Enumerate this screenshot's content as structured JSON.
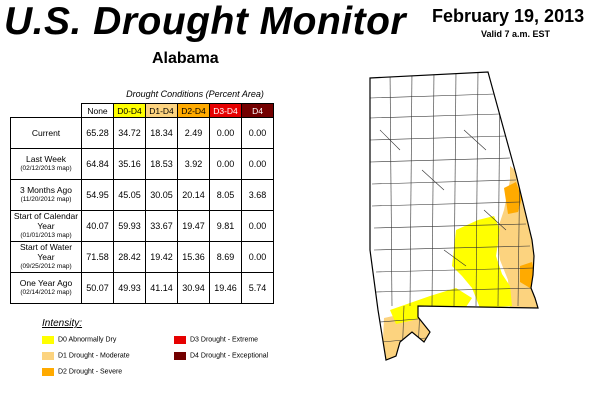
{
  "header": {
    "title": "U.S. Drought Monitor",
    "state": "Alabama",
    "date": "February 19, 2013",
    "valid": "Valid 7 a.m. EST"
  },
  "table": {
    "caption": "Drought Conditions (Percent Area)",
    "columns": [
      "None",
      "D0-D4",
      "D1-D4",
      "D2-D4",
      "D3-D4",
      "D4"
    ],
    "column_colors": [
      "#ffffff",
      "#ffff00",
      "#fcd37f",
      "#ffaa00",
      "#e60000",
      "#730000"
    ],
    "column_text_colors": [
      "#000000",
      "#000000",
      "#000000",
      "#000000",
      "#ffffff",
      "#ffffff"
    ],
    "rows": [
      {
        "label": "Current",
        "sub": "",
        "values": [
          "65.28",
          "34.72",
          "18.34",
          "2.49",
          "0.00",
          "0.00"
        ]
      },
      {
        "label": "Last Week",
        "sub": "(02/12/2013 map)",
        "values": [
          "64.84",
          "35.16",
          "18.53",
          "3.92",
          "0.00",
          "0.00"
        ]
      },
      {
        "label": "3 Months Ago",
        "sub": "(11/20/2012 map)",
        "values": [
          "54.95",
          "45.05",
          "30.05",
          "20.14",
          "8.05",
          "3.68"
        ]
      },
      {
        "label": "Start of Calendar Year",
        "sub": "(01/01/2013 map)",
        "values": [
          "40.07",
          "59.93",
          "33.67",
          "19.47",
          "9.81",
          "0.00"
        ]
      },
      {
        "label": "Start of Water Year",
        "sub": "(09/25/2012 map)",
        "values": [
          "71.58",
          "28.42",
          "19.42",
          "15.36",
          "8.69",
          "0.00"
        ]
      },
      {
        "label": "One Year Ago",
        "sub": "(02/14/2012 map)",
        "values": [
          "50.07",
          "49.93",
          "41.14",
          "30.94",
          "19.46",
          "5.74"
        ]
      }
    ]
  },
  "legend": {
    "title": "Intensity:",
    "items": [
      {
        "label": "D0 Abnormally Dry",
        "color": "#ffff00"
      },
      {
        "label": "D1 Drought - Moderate",
        "color": "#fcd37f"
      },
      {
        "label": "D2 Drought - Severe",
        "color": "#ffaa00"
      },
      {
        "label": "D3 Drought - Extreme",
        "color": "#e60000"
      },
      {
        "label": "D4 Drought - Exceptional",
        "color": "#730000"
      }
    ]
  },
  "map": {
    "colors": {
      "none": "#ffffff",
      "d0": "#ffff00",
      "d1": "#fcd37f",
      "d2": "#ffaa00"
    }
  }
}
